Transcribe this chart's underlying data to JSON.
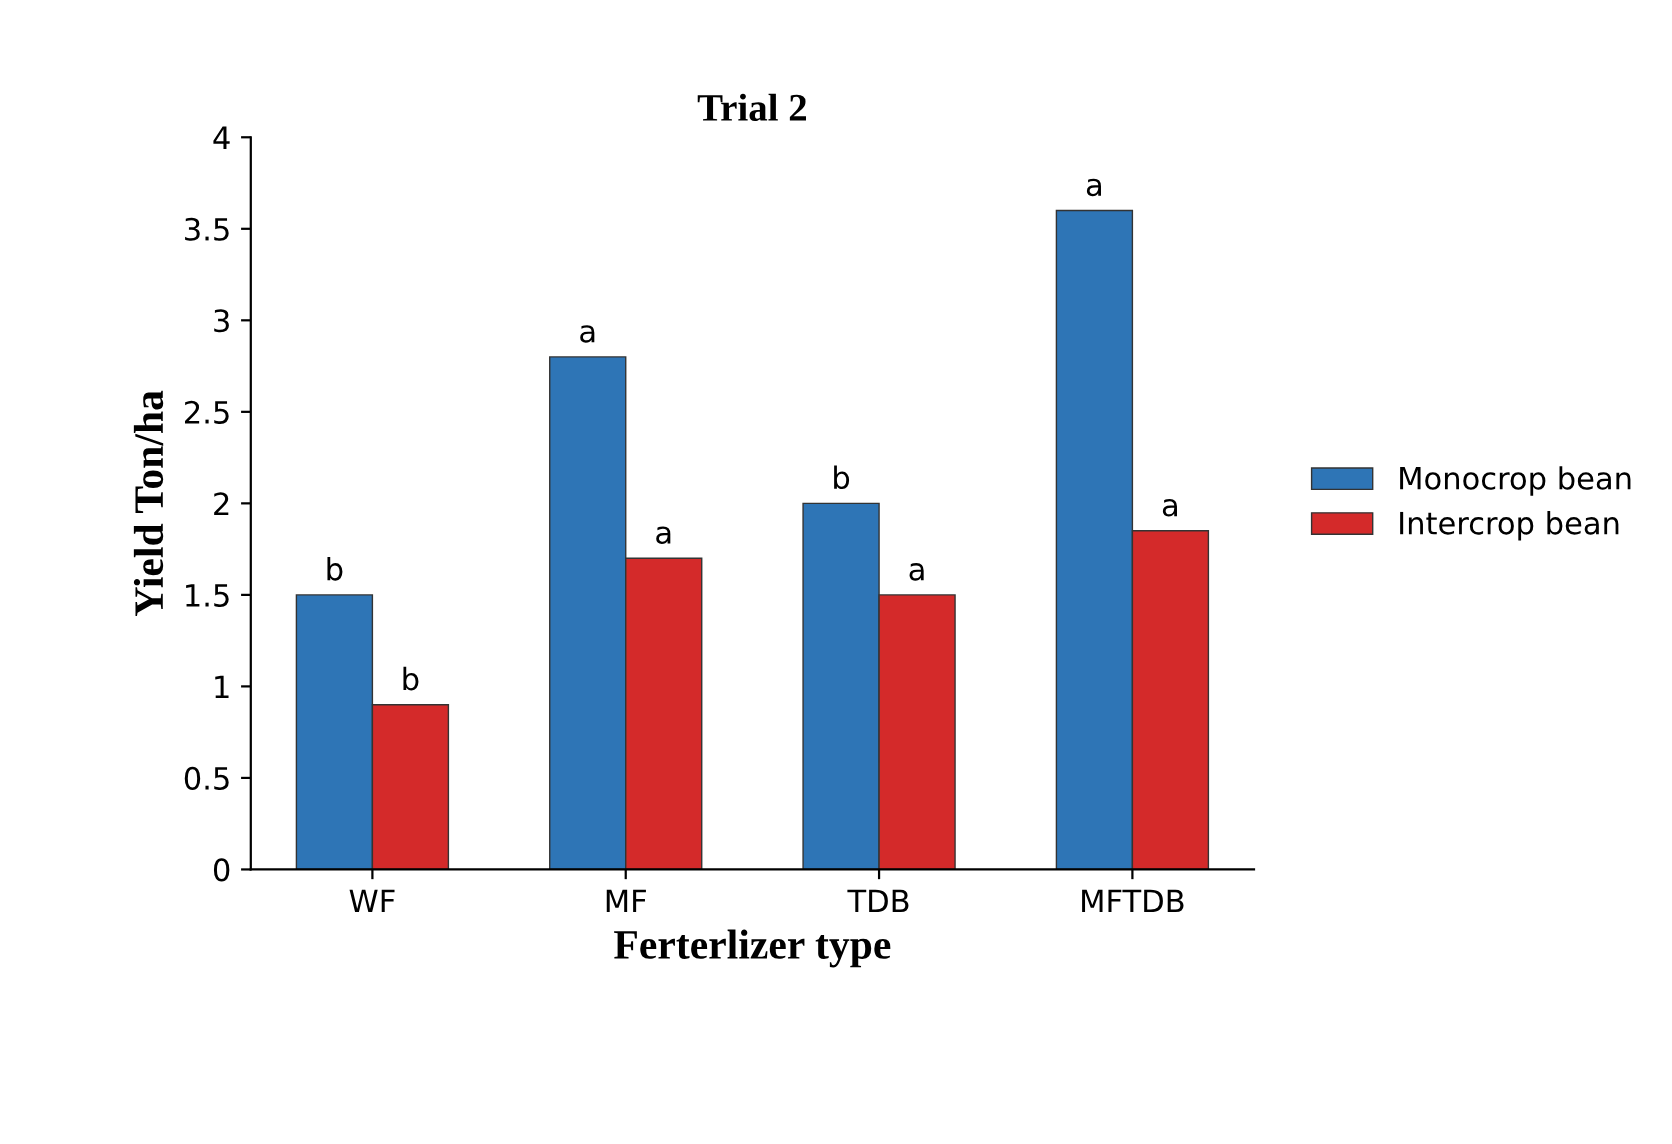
{
  "chart_data": {
    "type": "bar",
    "title": "Trial 2",
    "xlabel": "Ferterlizer type",
    "ylabel": "Yield Ton/ha",
    "categories": [
      "WF",
      "MF",
      "TDB",
      "MFTDB"
    ],
    "series": [
      {
        "name": "Monocrop bean",
        "color": "#2e75b6",
        "values": [
          1.5,
          2.8,
          2.0,
          3.6
        ],
        "value_labels": [
          "b",
          "a",
          "b",
          "a"
        ]
      },
      {
        "name": "Intercrop bean",
        "color": "#d42a2a",
        "values": [
          0.9,
          1.7,
          1.5,
          1.85
        ],
        "value_labels": [
          "b",
          "a",
          "a",
          "a"
        ]
      }
    ],
    "ylim": [
      0,
      4
    ],
    "yticks": [
      0,
      0.5,
      1,
      1.5,
      2,
      2.5,
      3,
      3.5,
      4
    ],
    "grid": false,
    "legend": "right"
  }
}
